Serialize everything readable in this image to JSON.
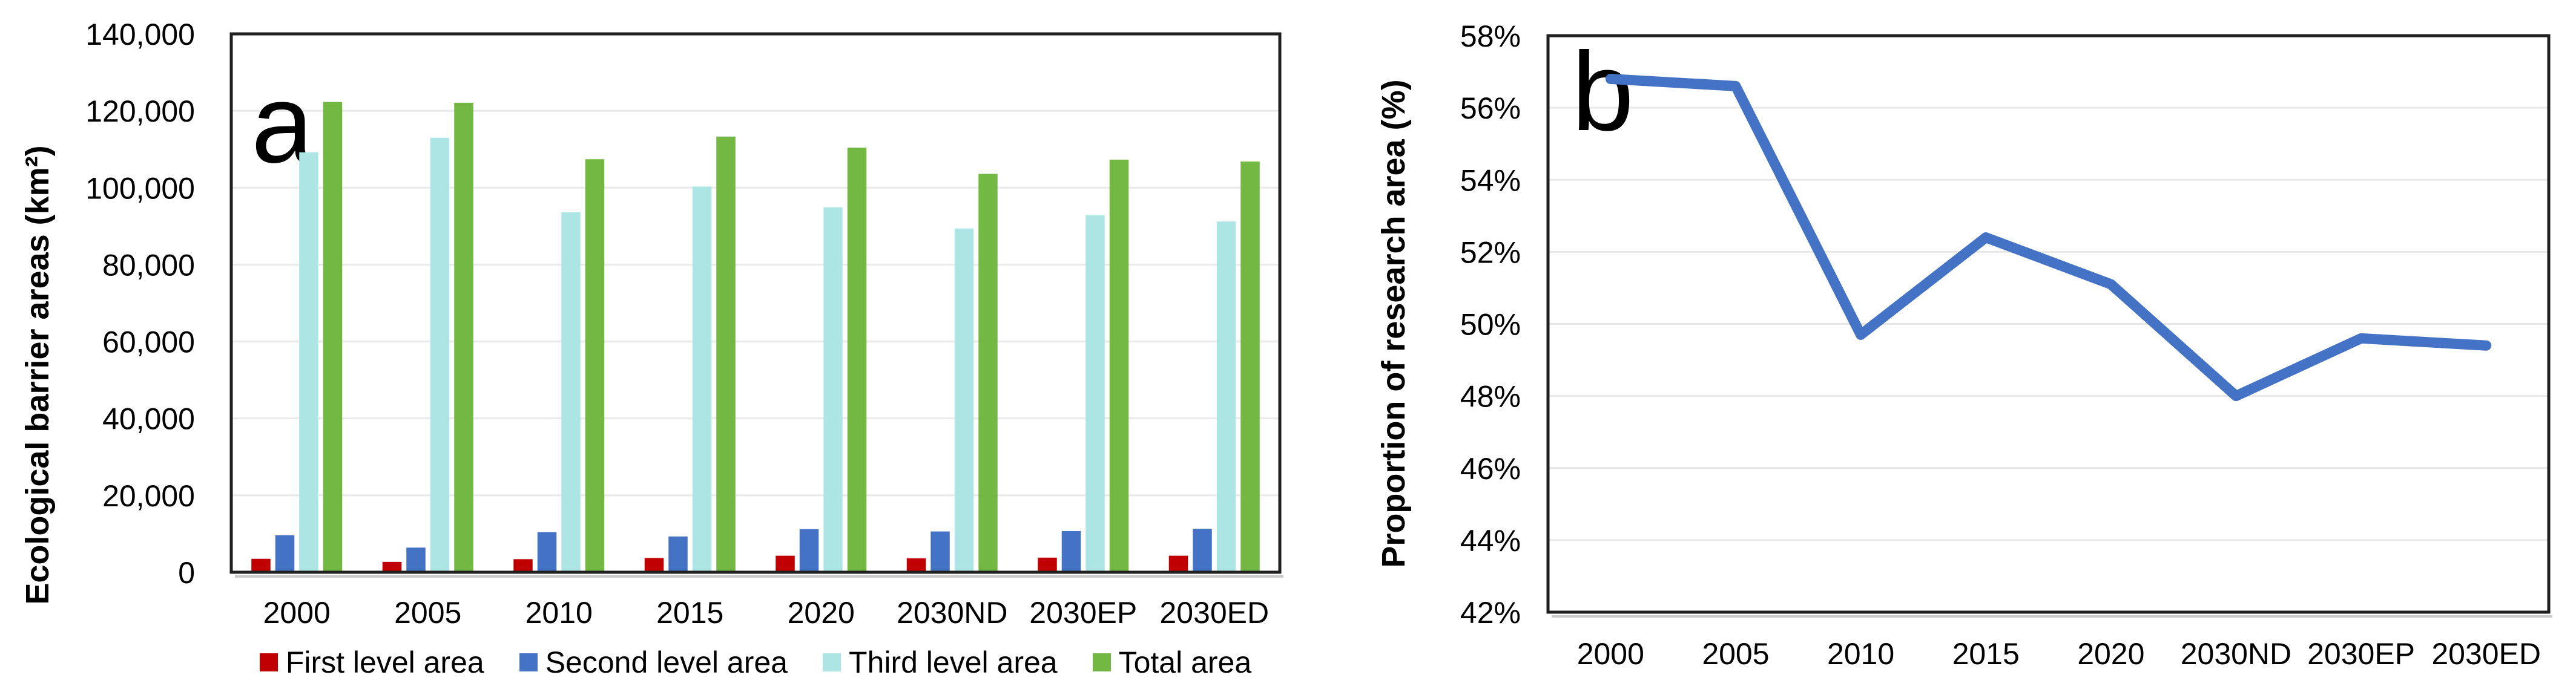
{
  "chart_data": [
    {
      "type": "bar",
      "panel_label": "a",
      "title": "",
      "xlabel": "",
      "ylabel": "Ecological barrier areas (km²)",
      "categories": [
        "2000",
        "2005",
        "2010",
        "2015",
        "2020",
        "2030ND",
        "2030EP",
        "2030ED"
      ],
      "series": [
        {
          "name": "First level area",
          "color": "#C00000",
          "values": [
            3500,
            2700,
            3400,
            3700,
            4300,
            3600,
            3800,
            4300
          ]
        },
        {
          "name": "Second level area",
          "color": "#4472C4",
          "values": [
            9600,
            6400,
            10400,
            9300,
            11200,
            10600,
            10700,
            11300
          ]
        },
        {
          "name": "Third level area",
          "color": "#ACE5E3",
          "values": [
            109200,
            113000,
            93600,
            100300,
            94900,
            89400,
            92800,
            91200
          ]
        },
        {
          "name": "Total area",
          "color": "#72B843",
          "values": [
            122300,
            122100,
            107400,
            113300,
            110400,
            103600,
            107300,
            106800
          ]
        }
      ],
      "ylim": [
        0,
        140000
      ],
      "ytick_step": 20000,
      "ytick_format": "comma",
      "grid": true,
      "legend_position": "bottom"
    },
    {
      "type": "line",
      "panel_label": "b",
      "title": "",
      "xlabel": "",
      "ylabel": "Proportion of research area (%)",
      "categories": [
        "2000",
        "2005",
        "2010",
        "2015",
        "2020",
        "2030ND",
        "2030EP",
        "2030ED"
      ],
      "series": [
        {
          "name": "Proportion of research area",
          "color": "#4472C4",
          "values": [
            56.8,
            56.6,
            49.7,
            52.4,
            51.1,
            48.0,
            49.6,
            49.4
          ]
        }
      ],
      "ylim": [
        42,
        58
      ],
      "ytick_step": 2,
      "ytick_format": "percent",
      "grid": true,
      "legend_position": "none"
    }
  ],
  "style": {
    "grid_color": "#E8E8E8",
    "axis_color": "#1F1F1F",
    "shadow_color": "#C9C9C9",
    "text_color": "#000000"
  }
}
